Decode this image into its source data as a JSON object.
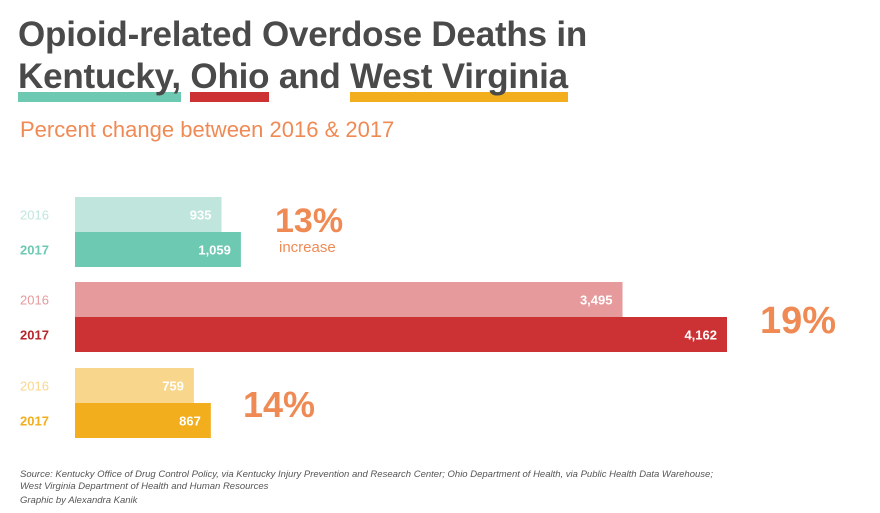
{
  "title": {
    "line1": "Opioid-related Overdose Deaths in",
    "kentucky": "Kentucky,",
    "ohio": "Ohio",
    "and": "and",
    "west_virginia": "West Virginia"
  },
  "subtitle": "Percent change between 2016 & 2017",
  "colors": {
    "title": "#4a4a4a",
    "accent": "#f08a55",
    "kentucky_2016": "#bfe5dc",
    "kentucky_2017": "#6ec9b3",
    "ohio_2016": "#e69a9c",
    "ohio_2017": "#cc3234",
    "wv_2016": "#f8d78c",
    "wv_2017": "#f2ae1c"
  },
  "chart_data": {
    "type": "bar",
    "orientation": "horizontal",
    "title": "Opioid-related Overdose Deaths in Kentucky, Ohio and West Virginia",
    "subtitle": "Percent change between 2016 & 2017",
    "xlim": [
      0,
      4162
    ],
    "groups": [
      {
        "name": "Kentucky",
        "bars": [
          {
            "year": "2016",
            "value": 935,
            "label": "935",
            "color": "#bfe5dc",
            "year_color": "#bfe5dc"
          },
          {
            "year": "2017",
            "value": 1059,
            "label": "1,059",
            "color": "#6ec9b3",
            "year_color": "#6ec9b3"
          }
        ],
        "change": "13%",
        "change_note": "increase"
      },
      {
        "name": "Ohio",
        "bars": [
          {
            "year": "2016",
            "value": 3495,
            "label": "3,495",
            "color": "#e69a9c",
            "year_color": "#e69a9c"
          },
          {
            "year": "2017",
            "value": 4162,
            "label": "4,162",
            "color": "#cc3234",
            "year_color": "#b5272b"
          }
        ],
        "change": "19%",
        "change_note": ""
      },
      {
        "name": "West Virginia",
        "bars": [
          {
            "year": "2016",
            "value": 759,
            "label": "759",
            "color": "#f8d78c",
            "year_color": "#f8d78c"
          },
          {
            "year": "2017",
            "value": 867,
            "label": "867",
            "color": "#f2ae1c",
            "year_color": "#f2ae1c"
          }
        ],
        "change": "14%",
        "change_note": ""
      }
    ]
  },
  "source": {
    "line1": "Source: Kentucky Office of Drug Control Policy, via Kentucky Injury Prevention  and Research Center; Ohio Department of Health, via Public Health Data Warehouse;",
    "line2": "West Virginia Department of Health and Human Resources",
    "credit": "Graphic by Alexandra Kanik"
  }
}
